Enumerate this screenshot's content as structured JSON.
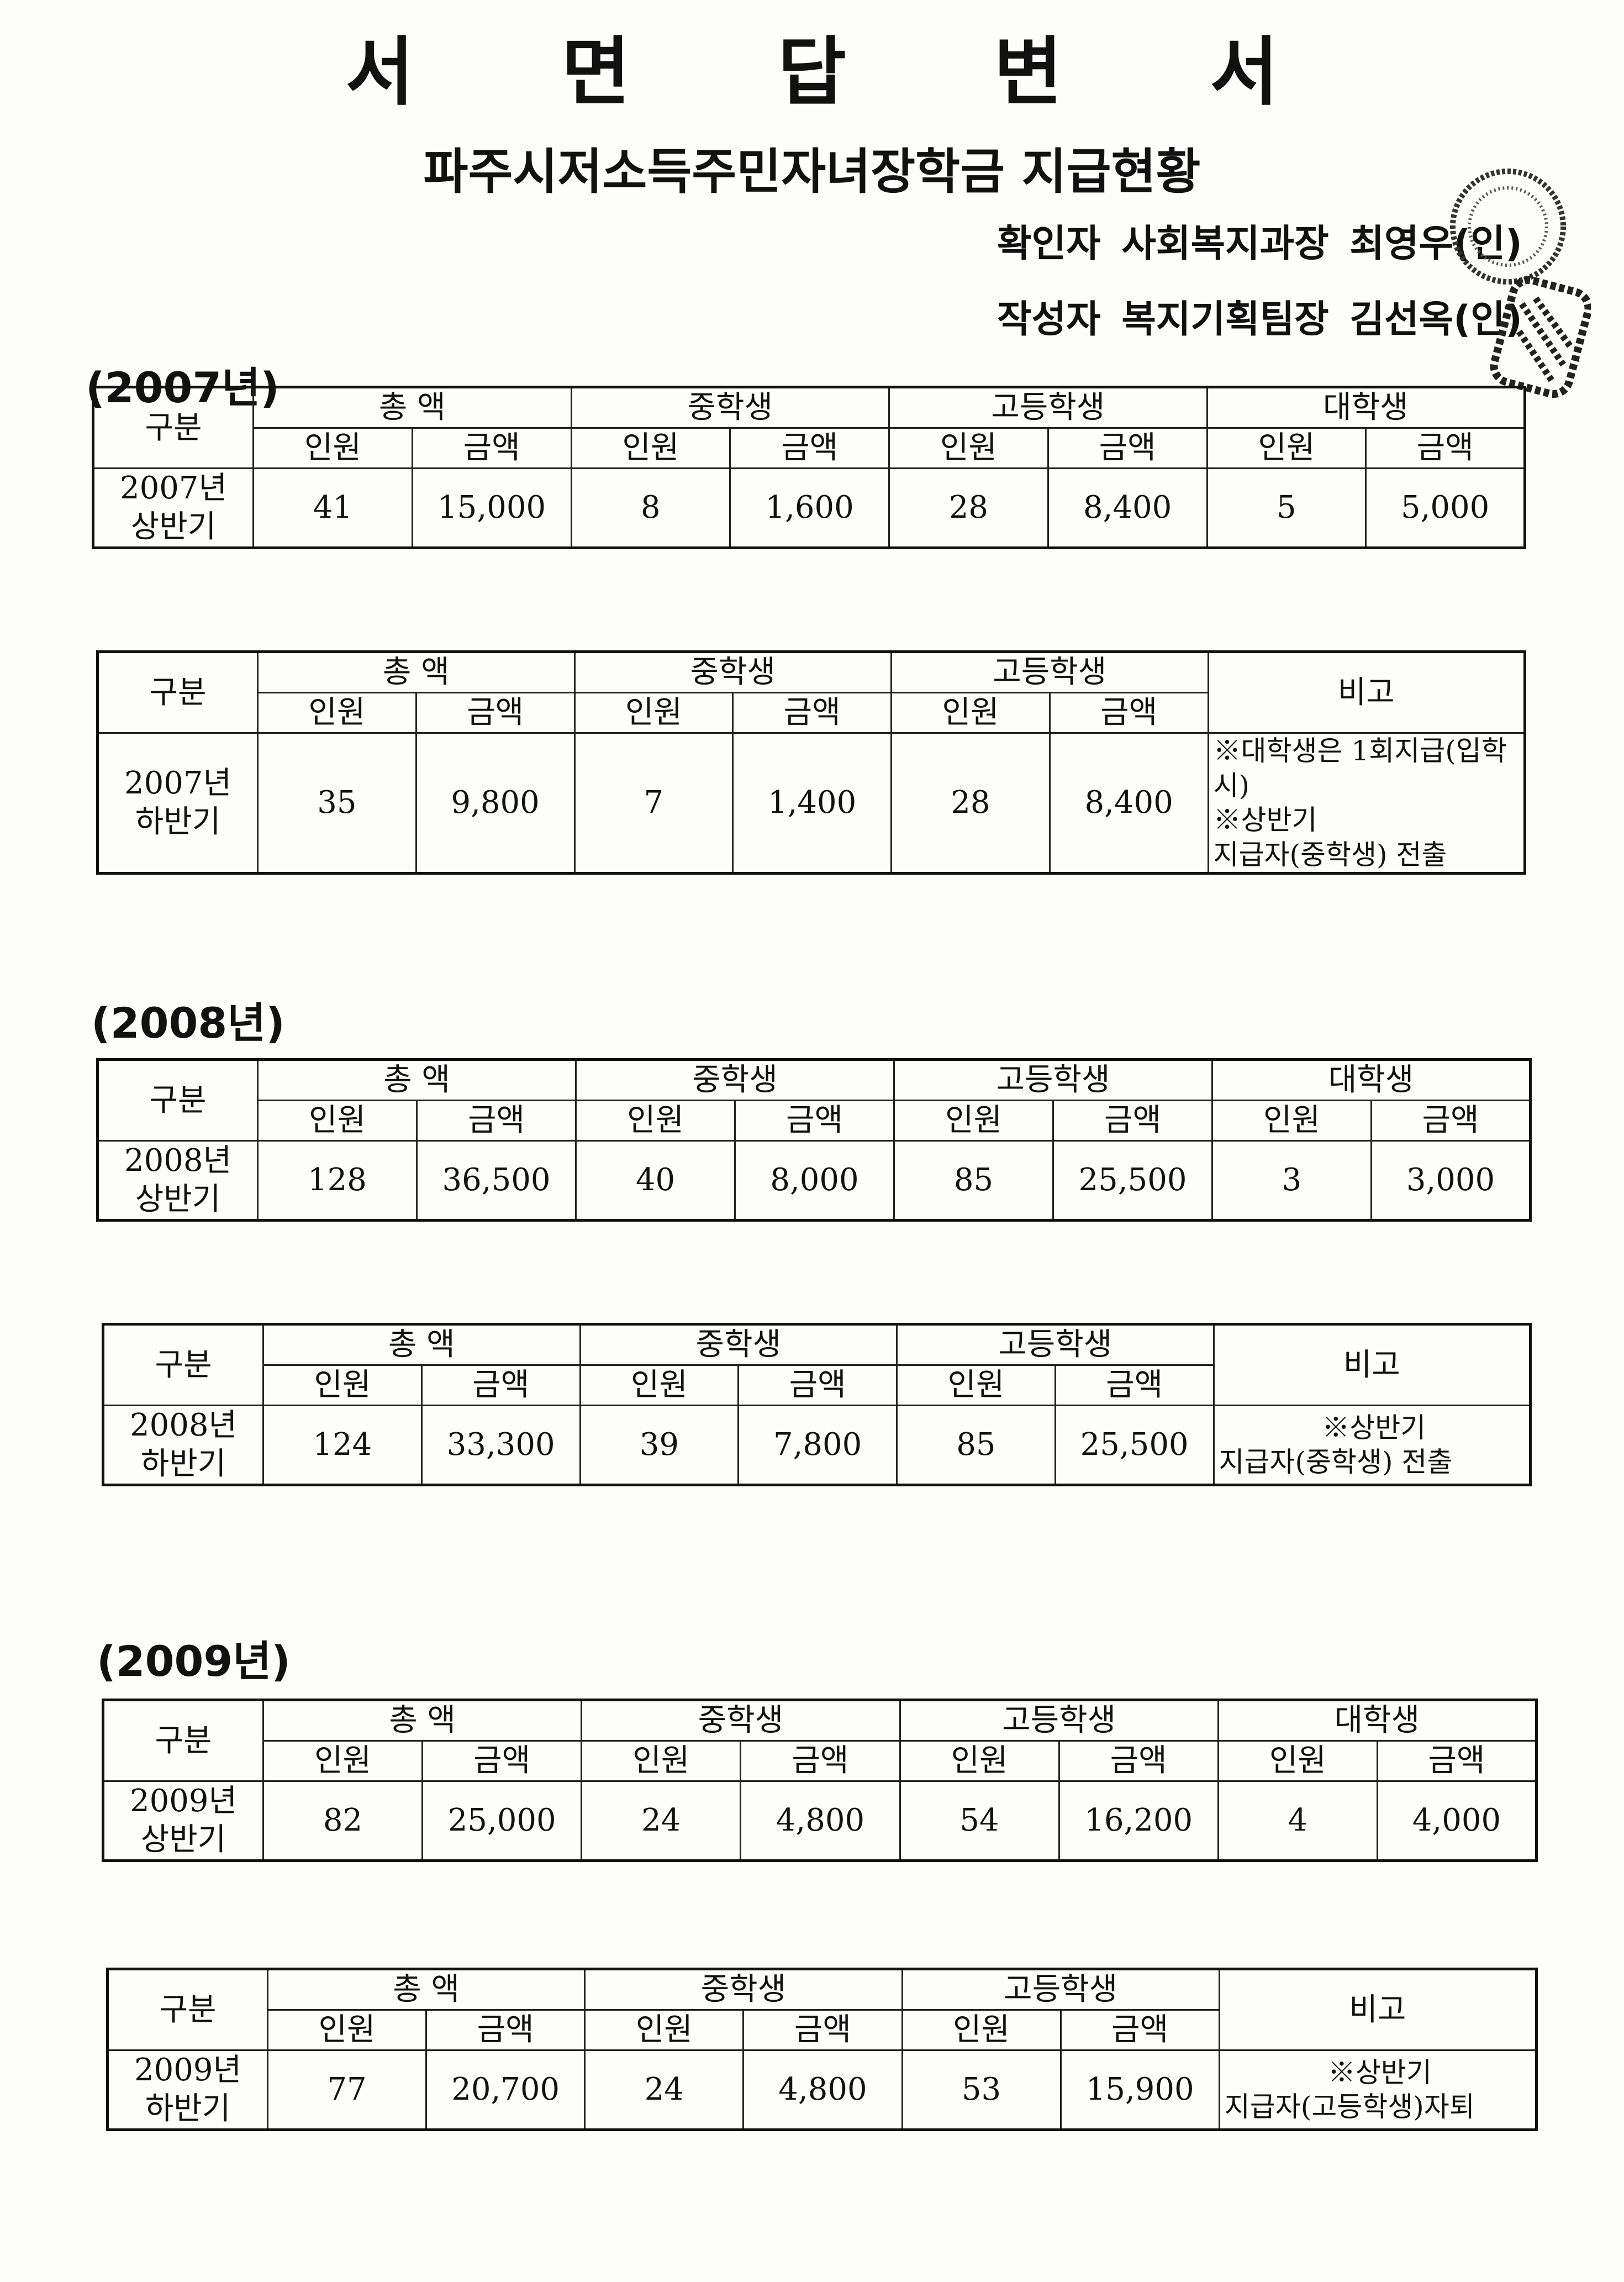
{
  "title": "서 면 답 변 서",
  "subtitle": "파주시저소득주민자녀장학금 지급현황",
  "signatures": [
    "확인자 사회복지과장 최영우(인)",
    "작성자 복지기획팀장 김선옥(인)"
  ],
  "headers": {
    "category": "구분",
    "total": "총  액",
    "middle": "중학생",
    "high": "고등학생",
    "university": "대학생",
    "remarks": "비고",
    "count": "인원",
    "amount": "금액"
  },
  "sections": [
    {
      "year_label": "(2007년)",
      "first_half": {
        "period": [
          "2007년",
          "상반기"
        ],
        "values": [
          "41",
          "15,000",
          "8",
          "1,600",
          "28",
          "8,400",
          "5",
          "5,000"
        ]
      },
      "second_half": {
        "period": [
          "2007년",
          "하반기"
        ],
        "values": [
          "35",
          "9,800",
          "7",
          "1,400",
          "28",
          "8,400"
        ],
        "remarks": [
          "※대학생은 1회지급(입학시)",
          "※상반기",
          "지급자(중학생) 전출"
        ]
      }
    },
    {
      "year_label": "(2008년)",
      "first_half": {
        "period": [
          "2008년",
          "상반기"
        ],
        "values": [
          "128",
          "36,500",
          "40",
          "8,000",
          "85",
          "25,500",
          "3",
          "3,000"
        ]
      },
      "second_half": {
        "period": [
          "2008년",
          "하반기"
        ],
        "values": [
          "124",
          "33,300",
          "39",
          "7,800",
          "85",
          "25,500"
        ],
        "remarks": [
          "※상반기",
          "지급자(중학생) 전출"
        ]
      }
    },
    {
      "year_label": "(2009년)",
      "first_half": {
        "period": [
          "2009년",
          "상반기"
        ],
        "values": [
          "82",
          "25,000",
          "24",
          "4,800",
          "54",
          "16,200",
          "4",
          "4,000"
        ]
      },
      "second_half": {
        "period": [
          "2009년",
          "하반기"
        ],
        "values": [
          "77",
          "20,700",
          "24",
          "4,800",
          "53",
          "15,900"
        ],
        "remarks": [
          "※상반기",
          "지급자(고등학생)자퇴"
        ]
      }
    }
  ]
}
